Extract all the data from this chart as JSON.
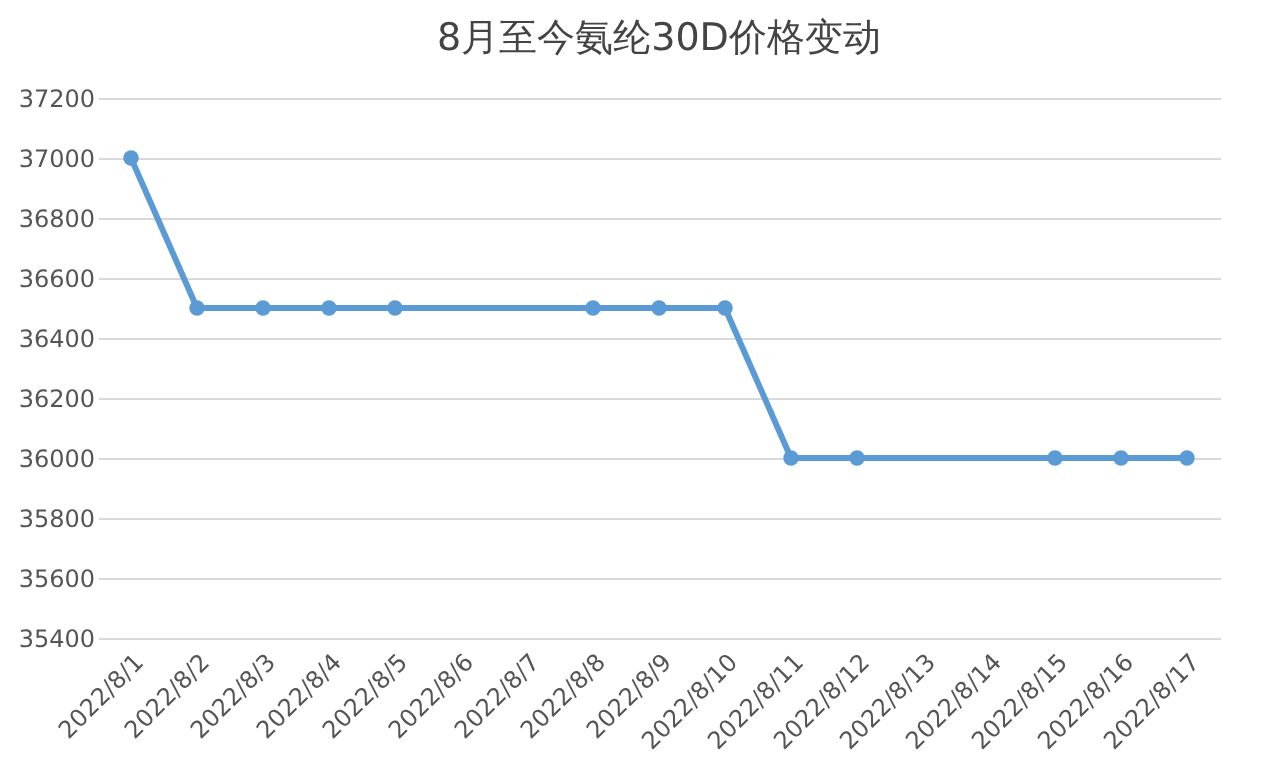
{
  "chart_data": {
    "type": "line",
    "title": "8月至今氨纶30D价格变动",
    "categories": [
      "2022/8/1",
      "2022/8/2",
      "2022/8/3",
      "2022/8/4",
      "2022/8/5",
      "2022/8/6",
      "2022/8/7",
      "2022/8/8",
      "2022/8/9",
      "2022/8/10",
      "2022/8/11",
      "2022/8/12",
      "2022/8/13",
      "2022/8/14",
      "2022/8/15",
      "2022/8/16",
      "2022/8/17"
    ],
    "series": [
      {
        "color": "#5b9bd5",
        "values": [
          37000,
          36500,
          36500,
          36500,
          36500,
          null,
          null,
          36500,
          36500,
          36500,
          36000,
          36000,
          null,
          null,
          36000,
          36000,
          36000
        ]
      }
    ],
    "ylim": [
      35400,
      37200
    ],
    "yticks": [
      35400,
      35600,
      35800,
      36000,
      36200,
      36400,
      36600,
      36800,
      37000,
      37200
    ],
    "grid": "y",
    "marker": "circle",
    "legend": false
  }
}
